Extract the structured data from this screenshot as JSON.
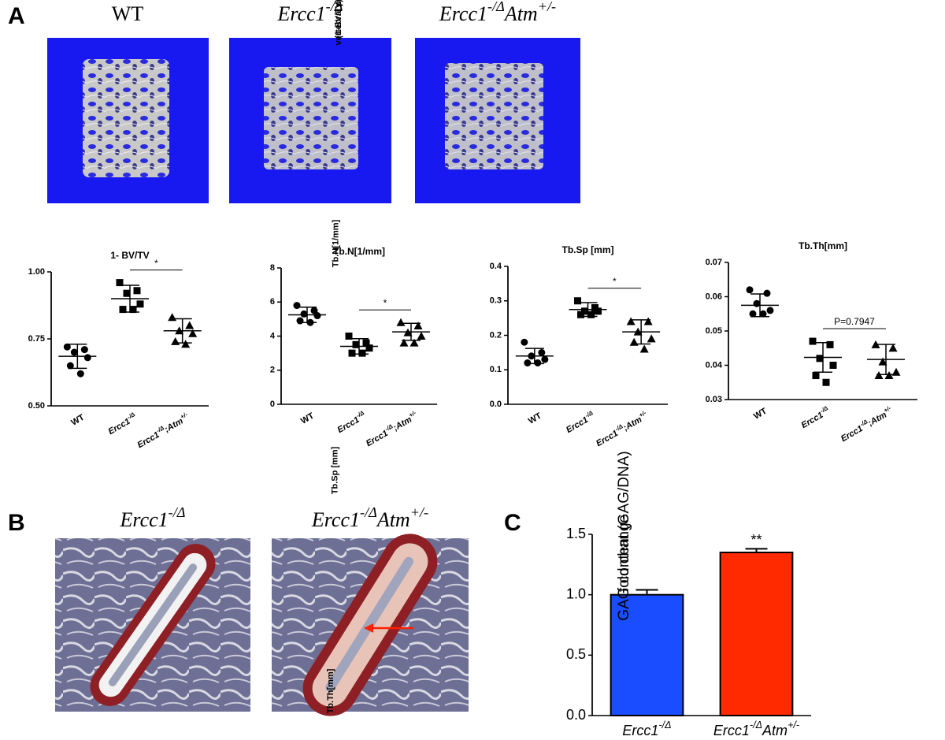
{
  "panels": [
    "A",
    "B",
    "C"
  ],
  "panel_a_captions": [
    "WT",
    "Ercc1-/Δ",
    "Ercc1-/ΔAtm+/-"
  ],
  "panel_b_captions": [
    "Ercc1-/Δ",
    "Ercc1-/ΔAtm+/-"
  ],
  "chart_data": [
    {
      "type": "scatter",
      "title": "1- BV/TV",
      "ylabel": [
        "vertebral porosity",
        "(1-BV/TV)"
      ],
      "categories": [
        "WT",
        "Ercc1-/Δ",
        "Ercc1-/Δ;Atm+/-"
      ],
      "markers": [
        "circle",
        "square",
        "triangle"
      ],
      "color": "#000000",
      "points": [
        [
          0.72,
          0.71,
          0.7,
          0.68,
          0.65,
          0.62
        ],
        [
          0.96,
          0.93,
          0.92,
          0.88,
          0.86,
          0.86
        ],
        [
          0.83,
          0.8,
          0.78,
          0.77,
          0.74,
          0.73
        ]
      ],
      "means": [
        0.685,
        0.9,
        0.78
      ],
      "sd": [
        0.045,
        0.05,
        0.045
      ],
      "comparison": {
        "label": "*",
        "groups": [
          1,
          2
        ]
      },
      "ylim": [
        0.5,
        1.0
      ],
      "yticks": [
        {
          "value": 0.5,
          "label": "0.50"
        },
        0.75,
        {
          "value": 1.0,
          "label": "1.00"
        }
      ]
    },
    {
      "type": "scatter",
      "title": "Tb.N[1/mm]",
      "ylabel": [
        "Tb.N[1/mm]"
      ],
      "categories": [
        "WT",
        "Ercc1-/Δ",
        "Ercc1-/Δ;Atm+/-"
      ],
      "markers": [
        "circle",
        "square",
        "triangle"
      ],
      "color": "#000000",
      "points": [
        [
          5.8,
          5.5,
          5.3,
          5.2,
          4.9,
          4.8
        ],
        [
          4.0,
          3.6,
          3.5,
          3.3,
          3.0,
          3.0
        ],
        [
          4.8,
          4.6,
          4.2,
          4.0,
          3.6,
          3.6
        ]
      ],
      "means": [
        5.25,
        3.4,
        4.25
      ],
      "sd": [
        0.45,
        0.45,
        0.5
      ],
      "comparison": {
        "label": "*",
        "groups": [
          1,
          2
        ]
      },
      "ylim": [
        0,
        8
      ],
      "yticks": [
        0,
        2,
        4,
        6,
        8
      ]
    },
    {
      "type": "scatter",
      "title": "Tb.Sp [mm]",
      "ylabel": [
        "Tb.Sp [mm]"
      ],
      "categories": [
        "WT",
        "Ercc1-/Δ",
        "Ercc1-/Δ;Atm+/-"
      ],
      "markers": [
        "circle",
        "square",
        "triangle"
      ],
      "color": "#000000",
      "points": [
        [
          0.18,
          0.15,
          0.14,
          0.13,
          0.12,
          0.12
        ],
        [
          0.3,
          0.28,
          0.27,
          0.27,
          0.26,
          0.26
        ],
        [
          0.24,
          0.24,
          0.21,
          0.19,
          0.18,
          0.16
        ]
      ],
      "means": [
        0.14,
        0.275,
        0.21
      ],
      "sd": [
        0.022,
        0.02,
        0.035
      ],
      "comparison": {
        "label": "*",
        "groups": [
          1,
          2
        ]
      },
      "ylim": [
        0,
        0.4
      ],
      "yticks": [
        {
          "value": 0,
          "label": "0.0"
        },
        0.1,
        0.2,
        0.3,
        0.4
      ]
    },
    {
      "type": "scatter",
      "title": "Tb.Th[mm]",
      "ylabel": [
        "Tb.Th[mm]"
      ],
      "categories": [
        "WT",
        "Ercc1-/Δ",
        "Ercc1-/Δ;Atm+/-"
      ],
      "markers": [
        "circle",
        "square",
        "triangle"
      ],
      "color": "#000000",
      "points": [
        [
          0.062,
          0.061,
          0.058,
          0.056,
          0.055,
          0.055
        ],
        [
          0.047,
          0.046,
          0.042,
          0.04,
          0.037,
          0.035
        ],
        [
          0.046,
          0.045,
          0.041,
          0.038,
          0.037,
          0.037
        ]
      ],
      "means": [
        0.0575,
        0.0423,
        0.0417
      ],
      "sd": [
        0.0033,
        0.0043,
        0.0044
      ],
      "comparison": {
        "label": "P=0.7947",
        "groups": [
          1,
          2
        ]
      },
      "ylim": [
        0.03,
        0.07
      ],
      "yticks": [
        0.03,
        0.04,
        0.05,
        0.06,
        0.07
      ]
    },
    {
      "type": "bar",
      "ylabel": [
        "GAG content (GAG/DNA)",
        "fold change"
      ],
      "categories": [
        "Ercc1-/Δ",
        "Ercc1-/ΔAtm+/-"
      ],
      "values": [
        1.0,
        1.35
      ],
      "errors": [
        0.04,
        0.03
      ],
      "colors": [
        "#1a4dff",
        "#ff2a00"
      ],
      "significance": [
        null,
        "**"
      ],
      "ylim": [
        0,
        1.5
      ],
      "yticks": [
        {
          "value": 0,
          "label": "0.0"
        },
        0.5,
        {
          "value": 1.0,
          "label": "1.0"
        },
        1.5
      ]
    }
  ]
}
